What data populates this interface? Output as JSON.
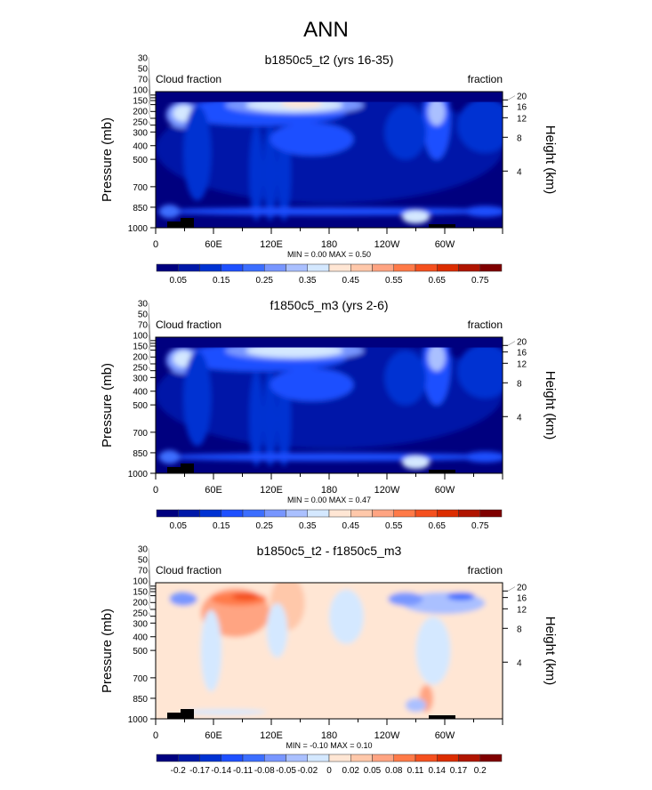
{
  "main_title": "ANN",
  "colors": {
    "abs_scale": [
      "#00007f",
      "#0018a8",
      "#0032d2",
      "#1e50ff",
      "#3c6eff",
      "#7896ff",
      "#aac0ff",
      "#d4e8ff",
      "#ffe6d4",
      "#ffc8aa",
      "#ffa482",
      "#ff7a48",
      "#f5501e",
      "#dc2d00",
      "#b01400",
      "#7f0000"
    ],
    "diff_scale": [
      "#00007f",
      "#0018a8",
      "#0032d2",
      "#1e50ff",
      "#3c6eff",
      "#7896ff",
      "#aac0ff",
      "#d4e8ff",
      "#ffe6d4",
      "#ffc8aa",
      "#ffa482",
      "#ff7a48",
      "#f5501e",
      "#dc2d00",
      "#b01400",
      "#7f0000"
    ]
  },
  "chart_data": [
    {
      "type": "heatmap",
      "title": "b1850c5_t2 (yrs 16-35)",
      "left_label": "Cloud fraction",
      "right_label": "fraction",
      "ylabel": "Pressure (mb)",
      "right_axis_label": "Height (km)",
      "xticks": [
        "0",
        "60E",
        "120E",
        "180",
        "120W",
        "60W"
      ],
      "yticks": [
        "30",
        "50",
        "70",
        "100",
        "150",
        "200",
        "250",
        "300",
        "400",
        "500",
        "700",
        "850",
        "1000"
      ],
      "right_ticks": [
        "20",
        "16",
        "12",
        "8",
        "4"
      ],
      "min_max": "MIN =   0.00  MAX =   0.50",
      "colorbar_labels": [
        "0.05",
        "0.15",
        "0.25",
        "0.35",
        "0.45",
        "0.55",
        "0.65",
        "0.75"
      ],
      "max_value": 0.5
    },
    {
      "type": "heatmap",
      "title": "f1850c5_m3 (yrs 2-6)",
      "left_label": "Cloud fraction",
      "right_label": "fraction",
      "ylabel": "Pressure (mb)",
      "right_axis_label": "Height (km)",
      "xticks": [
        "0",
        "60E",
        "120E",
        "180",
        "120W",
        "60W"
      ],
      "yticks": [
        "30",
        "50",
        "70",
        "100",
        "150",
        "200",
        "250",
        "300",
        "400",
        "500",
        "700",
        "850",
        "1000"
      ],
      "right_ticks": [
        "20",
        "16",
        "12",
        "8",
        "4"
      ],
      "min_max": "MIN =   0.00  MAX =   0.47",
      "colorbar_labels": [
        "0.05",
        "0.15",
        "0.25",
        "0.35",
        "0.45",
        "0.55",
        "0.65",
        "0.75"
      ],
      "max_value": 0.47
    },
    {
      "type": "heatmap",
      "title": "b1850c5_t2 - f1850c5_m3",
      "left_label": "Cloud fraction",
      "right_label": "fraction",
      "ylabel": "Pressure (mb)",
      "right_axis_label": "Height (km)",
      "xticks": [
        "0",
        "60E",
        "120E",
        "180",
        "120W",
        "60W"
      ],
      "yticks": [
        "30",
        "50",
        "70",
        "100",
        "150",
        "200",
        "250",
        "300",
        "400",
        "500",
        "700",
        "850",
        "1000"
      ],
      "right_ticks": [
        "20",
        "16",
        "12",
        "8",
        "4"
      ],
      "min_max": "MIN =  -0.10  MAX =   0.10",
      "colorbar_labels": [
        "-0.2",
        "-0.17",
        "-0.14",
        "-0.11",
        "-0.08",
        "-0.05",
        "-0.02",
        "0",
        "0.02",
        "0.05",
        "0.08",
        "0.11",
        "0.14",
        "0.17",
        "0.2"
      ],
      "max_value": 0.1
    }
  ]
}
